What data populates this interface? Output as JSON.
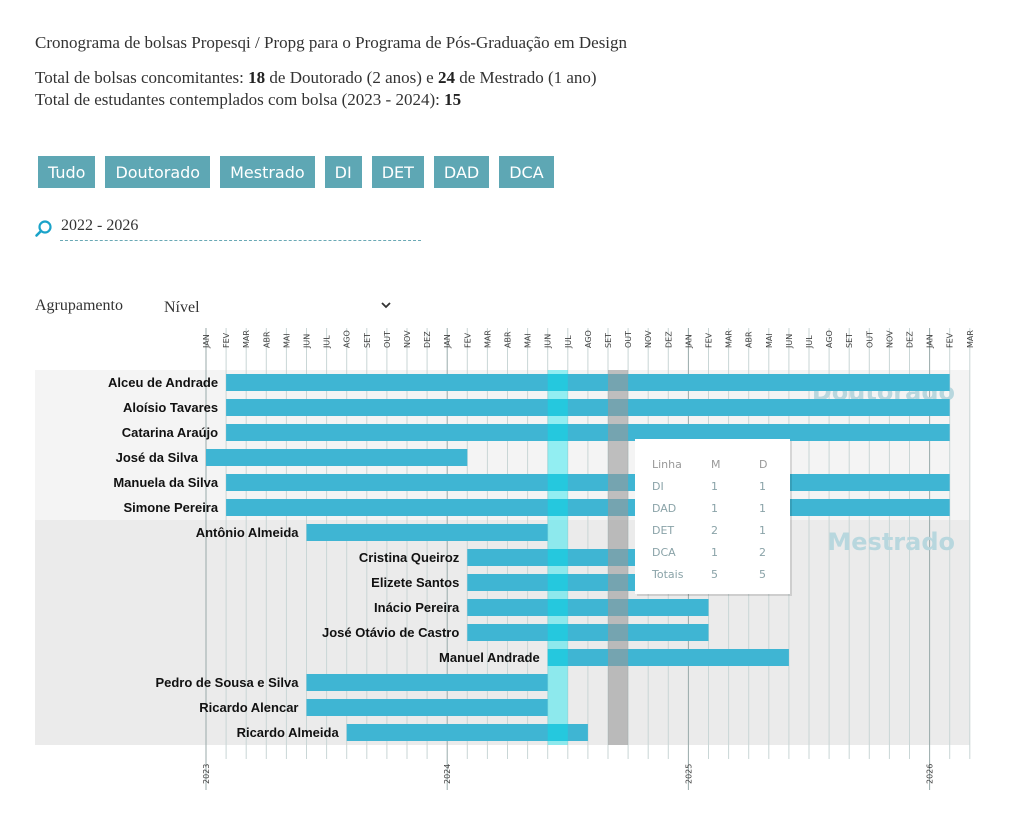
{
  "header": {
    "title": "Cronograma de bolsas Propesqi / Propg para o Programa de Pós-Graduação em Design",
    "line1_prefix": "Total de bolsas concomitantes: ",
    "doutorado_count": "18",
    "line1_mid": " de Doutorado (2 anos) e ",
    "mestrado_count": "24",
    "line1_suffix": " de Mestrado (1 ano)",
    "line2_prefix": "Total de estudantes contemplados com bolsa (2023 - 2024): ",
    "students_count": "15"
  },
  "filters": [
    "Tudo",
    "Doutorado",
    "Mestrado",
    "DI",
    "DET",
    "DAD",
    "DCA"
  ],
  "search": {
    "value": "2022 - 2026",
    "icon": "search-icon"
  },
  "grouping": {
    "label": "Agrupamento",
    "selected": "Nível",
    "icon": "chevron-down-icon"
  },
  "colors": {
    "accent": "#5ea7b4",
    "bar": "#3fb5d3",
    "current_month_band": "#00e5f0",
    "selected_month_band": "#9a9a9a",
    "group_label": "#b8d7de",
    "grid": "#c9d6d6"
  },
  "chart_data": {
    "type": "gantt",
    "months": [
      "JAN",
      "FEV",
      "MAR",
      "ABR",
      "MAI",
      "JUN",
      "JUL",
      "AGO",
      "SET",
      "OUT",
      "NOV",
      "DEZ",
      "JAN",
      "FEV",
      "MAR",
      "ABR",
      "MAI",
      "JUN",
      "JUL",
      "AGO",
      "SET",
      "OUT",
      "NOV",
      "DEZ",
      "JAN",
      "FEV",
      "MAR",
      "ABR",
      "MAI",
      "JUN",
      "JUL",
      "AGO",
      "SET",
      "OUT",
      "NOV",
      "DEZ",
      "JAN",
      "FEV",
      "MAR"
    ],
    "years": [
      {
        "label": "2023",
        "month_index": 0
      },
      {
        "label": "2024",
        "month_index": 12
      },
      {
        "label": "2025",
        "month_index": 24
      },
      {
        "label": "2026",
        "month_index": 36
      }
    ],
    "highlight_current_month_index": 17,
    "highlight_selected_month_index": 20,
    "groups": [
      {
        "name": "Doutorado",
        "rows": [
          {
            "name": "Alceu de Andrade",
            "start": 1,
            "end": 37
          },
          {
            "name": "Aloísio Tavares",
            "start": 1,
            "end": 37
          },
          {
            "name": "Catarina Araújo",
            "start": 1,
            "end": 37
          },
          {
            "name": "José da Silva",
            "start": 0,
            "end": 13
          },
          {
            "name": "Manuela da Silva",
            "start": 1,
            "end": 37
          },
          {
            "name": "Simone Pereira",
            "start": 1,
            "end": 37
          }
        ]
      },
      {
        "name": "Mestrado",
        "rows": [
          {
            "name": "Antônio Almeida",
            "start": 5,
            "end": 17
          },
          {
            "name": "Cristina Queiroz",
            "start": 13,
            "end": 25
          },
          {
            "name": "Elizete Santos",
            "start": 13,
            "end": 25
          },
          {
            "name": "Inácio Pereira",
            "start": 13,
            "end": 25
          },
          {
            "name": "José Otávio de Castro",
            "start": 13,
            "end": 25
          },
          {
            "name": "Manuel Andrade",
            "start": 17,
            "end": 29
          },
          {
            "name": "Pedro de Sousa e Silva",
            "start": 5,
            "end": 17
          },
          {
            "name": "Ricardo Alencar",
            "start": 5,
            "end": 17
          },
          {
            "name": "Ricardo Almeida",
            "start": 7,
            "end": 19
          }
        ]
      }
    ],
    "tooltip": {
      "headers": [
        "Linha",
        "M",
        "D"
      ],
      "rows": [
        [
          "DI",
          "1",
          "1"
        ],
        [
          "DAD",
          "1",
          "1"
        ],
        [
          "DET",
          "2",
          "1"
        ],
        [
          "DCA",
          "1",
          "2"
        ],
        [
          "Totais",
          "5",
          "5"
        ]
      ]
    }
  }
}
